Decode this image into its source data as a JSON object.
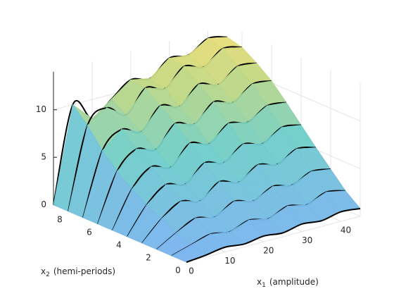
{
  "chart_data": {
    "type": "surface",
    "colormap": "parula",
    "x": [
      0,
      5,
      10,
      15,
      20,
      25,
      30,
      35,
      40,
      45
    ],
    "y": [
      0,
      1,
      2,
      3,
      4,
      5,
      6,
      7,
      8,
      9
    ],
    "z": [
      [
        0,
        0.2,
        0.5,
        0.3,
        0.6,
        0.4,
        0.8,
        0.6,
        1.0,
        0.8
      ],
      [
        0,
        0.6,
        1.2,
        0.9,
        1.6,
        1.2,
        2.0,
        1.6,
        2.4,
        2.0
      ],
      [
        0,
        1.2,
        2.2,
        1.8,
        2.9,
        2.4,
        3.4,
        3.0,
        3.9,
        3.6
      ],
      [
        0,
        2.0,
        3.3,
        2.8,
        4.3,
        3.7,
        5.0,
        4.5,
        5.6,
        5.2
      ],
      [
        0,
        2.8,
        4.4,
        3.9,
        5.6,
        5.1,
        6.5,
        6.0,
        7.2,
        6.9
      ],
      [
        0,
        3.8,
        5.6,
        5.0,
        7.0,
        6.4,
        8.0,
        7.6,
        8.8,
        8.6
      ],
      [
        0,
        5.0,
        6.8,
        6.2,
        8.4,
        7.8,
        9.6,
        9.0,
        10.4,
        10.2
      ],
      [
        0,
        6.5,
        8.2,
        7.4,
        9.6,
        9.0,
        10.8,
        10.2,
        11.6,
        11.4
      ],
      [
        0,
        8.5,
        9.8,
        8.5,
        10.8,
        10.2,
        12.0,
        11.4,
        12.8,
        12.4
      ],
      [
        0,
        10.0,
        8.0,
        9.5,
        11.0,
        10.6,
        12.2,
        12.0,
        13.2,
        12.8
      ]
    ],
    "xlim": [
      0,
      45
    ],
    "ylim": [
      0,
      9
    ],
    "zlim": [
      0,
      14
    ],
    "xticks": [
      0,
      10,
      20,
      30,
      40
    ],
    "yticks": [
      0,
      2,
      4,
      6,
      8
    ],
    "zticks": [
      0,
      5,
      10
    ],
    "xlabel": {
      "base": "x",
      "sub": "1",
      "rest": "(amplitude)"
    },
    "ylabel": {
      "base": "x",
      "sub": "2",
      "rest": "(hemi-periods)"
    },
    "grid": true
  }
}
